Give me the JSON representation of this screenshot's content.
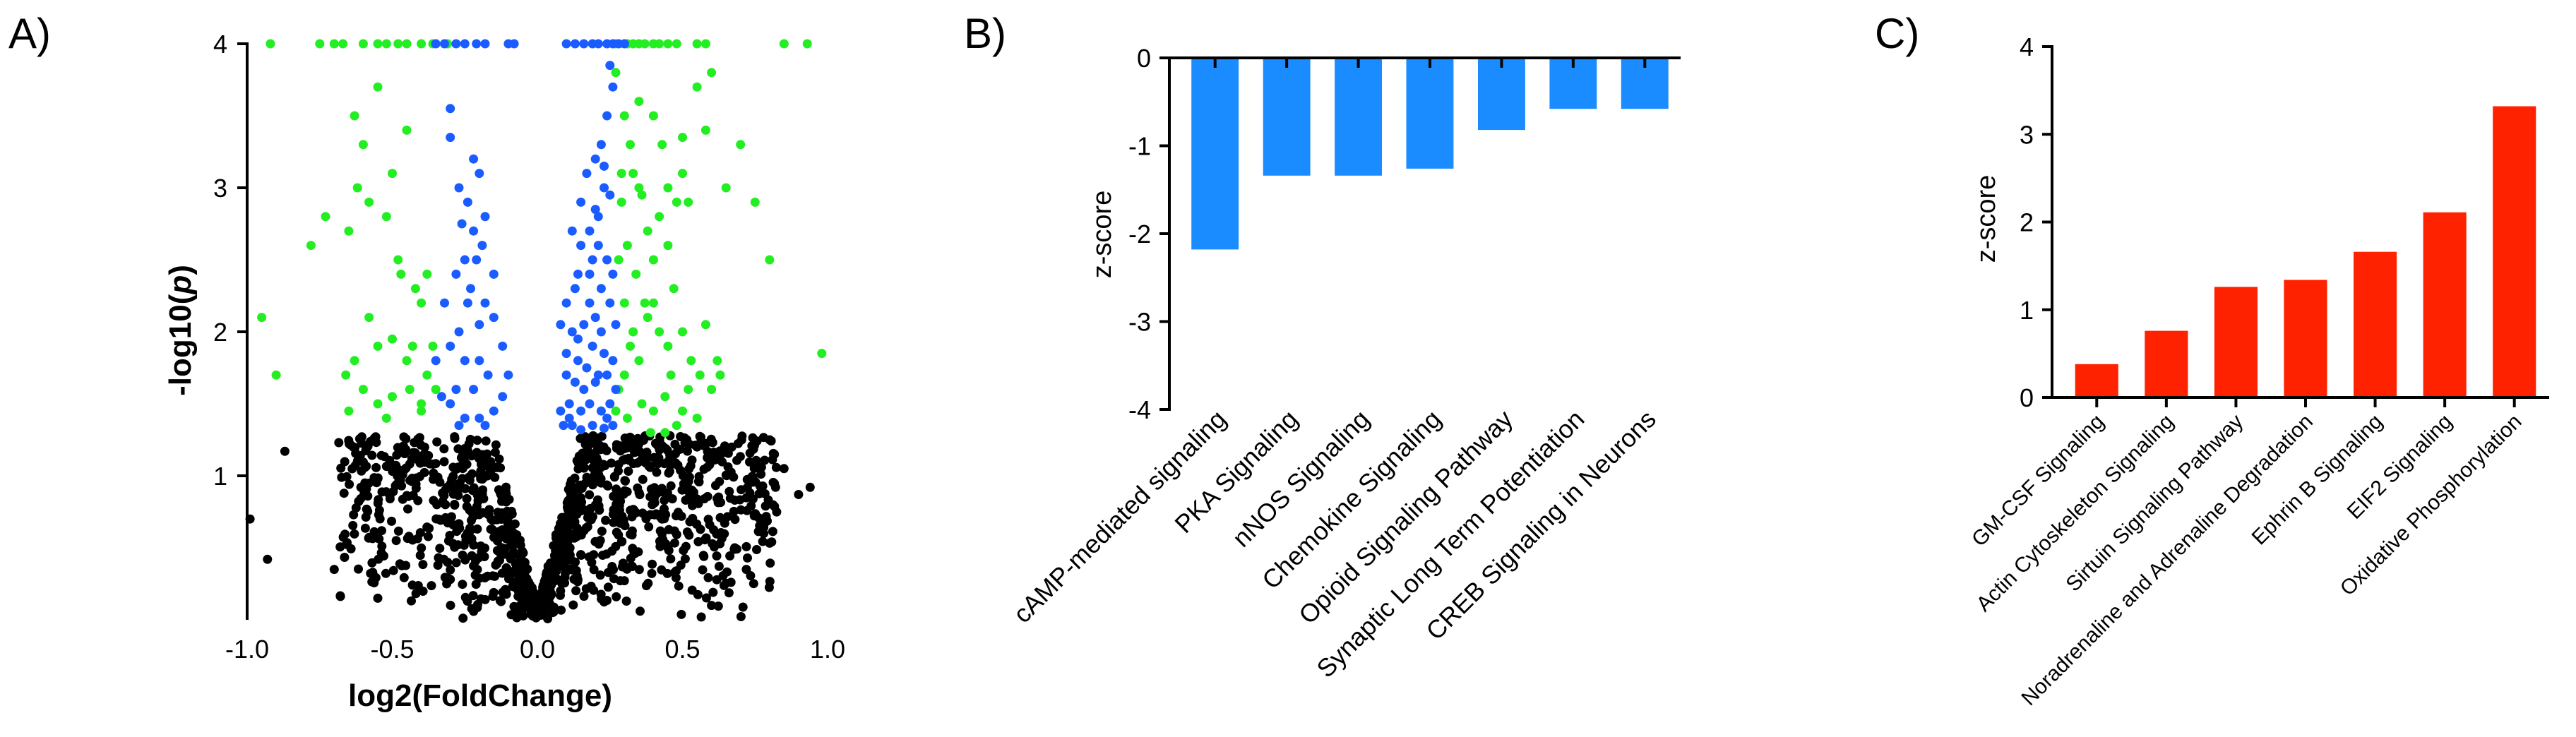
{
  "panels": {
    "a": {
      "label": "A)"
    },
    "b": {
      "label": "B)"
    },
    "c": {
      "label": "C)"
    }
  },
  "chart_data": [
    {
      "id": "A",
      "type": "scatter",
      "title": "",
      "xlabel": "log2(FoldChange)",
      "ylabel_prefix": "-log10(",
      "ylabel_italic": "p",
      "ylabel_suffix": ")",
      "xlim": [
        -1.0,
        1.0
      ],
      "ylim": [
        0,
        4.0
      ],
      "x_ticks": [
        -1.0,
        -0.5,
        0.0,
        0.5,
        1.0
      ],
      "x_tick_labels": [
        "-1.0",
        "-0.5",
        "0.0",
        "0.5",
        "1.0"
      ],
      "y_ticks": [
        1,
        2,
        3,
        4
      ],
      "y_tick_labels": [
        "1",
        "2",
        "3",
        "4"
      ],
      "series_colors": {
        "green": "#22ee22",
        "blue": "#1a5cff",
        "black": "#000000"
      },
      "series": {
        "green": [
          [
            -0.92,
            4.0
          ],
          [
            -0.75,
            4.0
          ],
          [
            -0.7,
            4.0
          ],
          [
            -0.67,
            4.0
          ],
          [
            -0.6,
            4.0
          ],
          [
            -0.55,
            4.0
          ],
          [
            -0.52,
            4.0
          ],
          [
            -0.48,
            4.0
          ],
          [
            -0.45,
            4.0
          ],
          [
            -0.4,
            4.0
          ],
          [
            -0.36,
            4.0
          ],
          [
            -0.31,
            4.0
          ],
          [
            0.27,
            4.0
          ],
          [
            0.31,
            4.0
          ],
          [
            0.33,
            4.0
          ],
          [
            0.35,
            4.0
          ],
          [
            0.37,
            4.0
          ],
          [
            0.4,
            4.0
          ],
          [
            0.42,
            4.0
          ],
          [
            0.45,
            4.0
          ],
          [
            0.48,
            4.0
          ],
          [
            0.55,
            4.0
          ],
          [
            0.58,
            4.0
          ],
          [
            0.85,
            4.0
          ],
          [
            0.93,
            4.0
          ],
          [
            -0.55,
            3.7
          ],
          [
            -0.63,
            3.5
          ],
          [
            -0.6,
            3.3
          ],
          [
            -0.45,
            3.4
          ],
          [
            -0.62,
            3.0
          ],
          [
            -0.58,
            2.9
          ],
          [
            -0.65,
            2.7
          ],
          [
            -0.73,
            2.8
          ],
          [
            -0.78,
            2.6
          ],
          [
            -0.5,
            3.1
          ],
          [
            -0.52,
            2.8
          ],
          [
            -0.48,
            2.5
          ],
          [
            -0.58,
            2.1
          ],
          [
            -0.55,
            1.9
          ],
          [
            -0.5,
            1.95
          ],
          [
            -0.45,
            1.8
          ],
          [
            -0.63,
            1.8
          ],
          [
            -0.66,
            1.7
          ],
          [
            -0.6,
            1.6
          ],
          [
            -0.55,
            1.5
          ],
          [
            -0.5,
            1.55
          ],
          [
            -0.44,
            1.6
          ],
          [
            -0.4,
            1.5
          ],
          [
            -0.38,
            1.7
          ],
          [
            -0.43,
            1.9
          ],
          [
            -0.4,
            2.2
          ],
          [
            -0.47,
            2.4
          ],
          [
            -0.42,
            2.3
          ],
          [
            -0.9,
            1.7
          ],
          [
            -0.95,
            2.1
          ],
          [
            -0.65,
            1.45
          ],
          [
            -0.52,
            1.4
          ],
          [
            -0.4,
            1.45
          ],
          [
            -0.35,
            1.6
          ],
          [
            -0.36,
            1.9
          ],
          [
            -0.38,
            2.4
          ],
          [
            0.27,
            3.8
          ],
          [
            0.3,
            3.5
          ],
          [
            0.32,
            3.3
          ],
          [
            0.35,
            3.6
          ],
          [
            0.33,
            3.1
          ],
          [
            0.36,
            2.95
          ],
          [
            0.38,
            2.7
          ],
          [
            0.29,
            2.9
          ],
          [
            0.31,
            2.6
          ],
          [
            0.34,
            2.4
          ],
          [
            0.37,
            2.2
          ],
          [
            0.3,
            2.2
          ],
          [
            0.28,
            2.5
          ],
          [
            0.4,
            3.5
          ],
          [
            0.43,
            3.3
          ],
          [
            0.45,
            3.0
          ],
          [
            0.42,
            2.8
          ],
          [
            0.48,
            2.9
          ],
          [
            0.5,
            3.1
          ],
          [
            0.55,
            3.7
          ],
          [
            0.58,
            3.4
          ],
          [
            0.5,
            3.35
          ],
          [
            0.52,
            2.9
          ],
          [
            0.45,
            2.6
          ],
          [
            0.4,
            2.5
          ],
          [
            0.47,
            2.3
          ],
          [
            0.38,
            2.1
          ],
          [
            0.42,
            2.0
          ],
          [
            0.45,
            1.9
          ],
          [
            0.5,
            2.0
          ],
          [
            0.53,
            1.8
          ],
          [
            0.56,
            1.7
          ],
          [
            0.6,
            1.6
          ],
          [
            0.62,
            1.8
          ],
          [
            0.58,
            2.05
          ],
          [
            0.35,
            1.8
          ],
          [
            0.32,
            1.9
          ],
          [
            0.3,
            1.7
          ],
          [
            0.28,
            1.6
          ],
          [
            0.27,
            1.45
          ],
          [
            0.31,
            1.4
          ],
          [
            0.36,
            1.5
          ],
          [
            0.4,
            1.45
          ],
          [
            0.44,
            1.55
          ],
          [
            0.5,
            1.45
          ],
          [
            0.55,
            1.4
          ],
          [
            0.63,
            1.7
          ],
          [
            0.65,
            3.0
          ],
          [
            0.7,
            3.3
          ],
          [
            0.8,
            2.5
          ],
          [
            0.75,
            2.9
          ],
          [
            0.98,
            1.85
          ],
          [
            0.6,
            3.8
          ],
          [
            0.35,
            3.0
          ],
          [
            0.4,
            2.2
          ],
          [
            0.46,
            1.7
          ],
          [
            0.33,
            2.0
          ],
          [
            0.29,
            3.1
          ],
          [
            0.39,
            1.3
          ],
          [
            0.44,
            1.3
          ],
          [
            0.48,
            1.35
          ],
          [
            0.52,
            1.6
          ]
        ],
        "blue": [
          [
            -0.35,
            4.0
          ],
          [
            -0.32,
            4.0
          ],
          [
            -0.28,
            4.0
          ],
          [
            -0.25,
            4.0
          ],
          [
            -0.21,
            4.0
          ],
          [
            -0.18,
            4.0
          ],
          [
            -0.1,
            4.0
          ],
          [
            -0.08,
            4.0
          ],
          [
            0.1,
            4.0
          ],
          [
            0.13,
            4.0
          ],
          [
            0.16,
            4.0
          ],
          [
            0.19,
            4.0
          ],
          [
            0.21,
            4.0
          ],
          [
            0.24,
            4.0
          ],
          [
            0.26,
            4.0
          ],
          [
            0.28,
            4.0
          ],
          [
            0.3,
            4.0
          ],
          [
            0.25,
            3.85
          ],
          [
            -0.3,
            3.55
          ],
          [
            -0.3,
            3.35
          ],
          [
            -0.27,
            3.0
          ],
          [
            -0.22,
            3.2
          ],
          [
            -0.2,
            3.1
          ],
          [
            -0.24,
            2.9
          ],
          [
            -0.22,
            2.7
          ],
          [
            -0.19,
            2.6
          ],
          [
            -0.25,
            2.5
          ],
          [
            -0.28,
            2.4
          ],
          [
            -0.23,
            2.3
          ],
          [
            -0.18,
            2.2
          ],
          [
            -0.15,
            2.1
          ],
          [
            -0.2,
            2.05
          ],
          [
            -0.27,
            2.0
          ],
          [
            -0.3,
            1.9
          ],
          [
            -0.25,
            1.8
          ],
          [
            -0.2,
            1.8
          ],
          [
            -0.17,
            1.7
          ],
          [
            -0.22,
            1.6
          ],
          [
            -0.28,
            1.6
          ],
          [
            -0.3,
            1.5
          ],
          [
            -0.25,
            1.4
          ],
          [
            -0.2,
            1.4
          ],
          [
            -0.15,
            1.45
          ],
          [
            -0.12,
            1.55
          ],
          [
            -0.1,
            1.7
          ],
          [
            -0.12,
            1.9
          ],
          [
            -0.15,
            2.4
          ],
          [
            -0.18,
            2.8
          ],
          [
            -0.32,
            2.2
          ],
          [
            -0.35,
            1.8
          ],
          [
            -0.33,
            1.55
          ],
          [
            -0.27,
            1.35
          ],
          [
            -0.18,
            1.35
          ],
          [
            -0.26,
            2.75
          ],
          [
            -0.21,
            2.5
          ],
          [
            -0.24,
            2.2
          ],
          [
            0.26,
            3.7
          ],
          [
            0.24,
            3.5
          ],
          [
            0.22,
            3.3
          ],
          [
            0.2,
            3.2
          ],
          [
            0.23,
            3.0
          ],
          [
            0.25,
            2.95
          ],
          [
            0.2,
            2.85
          ],
          [
            0.18,
            2.7
          ],
          [
            0.21,
            2.6
          ],
          [
            0.24,
            2.5
          ],
          [
            0.15,
            2.9
          ],
          [
            0.17,
            3.1
          ],
          [
            0.12,
            2.7
          ],
          [
            0.14,
            2.4
          ],
          [
            0.18,
            2.4
          ],
          [
            0.22,
            2.3
          ],
          [
            0.25,
            2.2
          ],
          [
            0.2,
            2.1
          ],
          [
            0.16,
            2.05
          ],
          [
            0.12,
            2.0
          ],
          [
            0.1,
            2.2
          ],
          [
            0.14,
            1.95
          ],
          [
            0.19,
            1.9
          ],
          [
            0.23,
            1.85
          ],
          [
            0.26,
            1.8
          ],
          [
            0.24,
            1.7
          ],
          [
            0.2,
            1.65
          ],
          [
            0.16,
            1.6
          ],
          [
            0.13,
            1.65
          ],
          [
            0.1,
            1.7
          ],
          [
            0.11,
            1.5
          ],
          [
            0.15,
            1.45
          ],
          [
            0.18,
            1.5
          ],
          [
            0.22,
            1.45
          ],
          [
            0.25,
            1.5
          ],
          [
            0.27,
            1.6
          ],
          [
            0.08,
            1.45
          ],
          [
            0.09,
            1.35
          ],
          [
            0.12,
            1.35
          ],
          [
            0.15,
            1.32
          ],
          [
            0.19,
            1.35
          ],
          [
            0.23,
            1.33
          ],
          [
            0.26,
            1.35
          ],
          [
            0.1,
            1.85
          ],
          [
            0.08,
            2.05
          ],
          [
            0.27,
            2.05
          ],
          [
            0.26,
            2.4
          ],
          [
            0.18,
            2.2
          ],
          [
            0.22,
            2.0
          ],
          [
            0.14,
            1.8
          ],
          [
            0.17,
            1.75
          ],
          [
            0.21,
            1.7
          ],
          [
            0.11,
            1.4
          ],
          [
            0.24,
            1.4
          ],
          [
            0.13,
            2.3
          ],
          [
            0.19,
            2.5
          ],
          [
            0.15,
            2.6
          ],
          [
            0.21,
            2.8
          ],
          [
            0.23,
            3.15
          ]
        ]
      },
      "black_cloud": {
        "points": 1300,
        "seed": 7,
        "extra_points": [
          [
            -0.99,
            0.7
          ],
          [
            -0.93,
            0.42
          ],
          [
            -0.87,
            1.17
          ],
          [
            -0.7,
            0.35
          ],
          [
            -0.62,
            1.1
          ],
          [
            -0.55,
            0.15
          ],
          [
            0.9,
            0.87
          ],
          [
            0.94,
            0.92
          ],
          [
            0.85,
            1.05
          ],
          [
            0.68,
            0.5
          ],
          [
            0.72,
            0.35
          ],
          [
            0.6,
            0.1
          ],
          [
            0.55,
            1.2
          ],
          [
            0.78,
            0.6
          ]
        ]
      }
    },
    {
      "id": "B",
      "type": "bar",
      "title": "",
      "xlabel": "",
      "ylabel": "z-score",
      "ylim": [
        -4,
        0
      ],
      "y_ticks": [
        0,
        -1,
        -2,
        -3,
        -4
      ],
      "y_tick_labels": [
        "0",
        "-1",
        "-2",
        "-3",
        "-4"
      ],
      "color": "#1a8cff",
      "categories": [
        "cAMP-mediated signaling",
        "PKA Signaling",
        "nNOS Signaling",
        "Chemokine Signaling",
        "Opioid Signaling Pathway",
        "Synaptic Long Term Potentiation",
        "CREB Signaling in Neurons"
      ],
      "values": [
        -2.18,
        -1.34,
        -1.34,
        -1.26,
        -0.82,
        -0.58,
        -0.58
      ]
    },
    {
      "id": "C",
      "type": "bar",
      "title": "",
      "xlabel": "",
      "ylabel": "z-score",
      "ylim": [
        0,
        4
      ],
      "y_ticks": [
        0,
        1,
        2,
        3,
        4
      ],
      "y_tick_labels": [
        "0",
        "1",
        "2",
        "3",
        "4"
      ],
      "color": "#ff2200",
      "categories": [
        "GM-CSF Signaling",
        "Actin Cytoskeleton Signaling",
        "Sirtuin Signaling Pathway",
        "Noradrenaline and Adrenaline Degradation",
        "Ephrin B Signaling",
        "EIF2 Signaling",
        "Oxidative Phosphorylation"
      ],
      "values": [
        0.38,
        0.76,
        1.26,
        1.34,
        1.66,
        2.11,
        3.32
      ]
    }
  ]
}
